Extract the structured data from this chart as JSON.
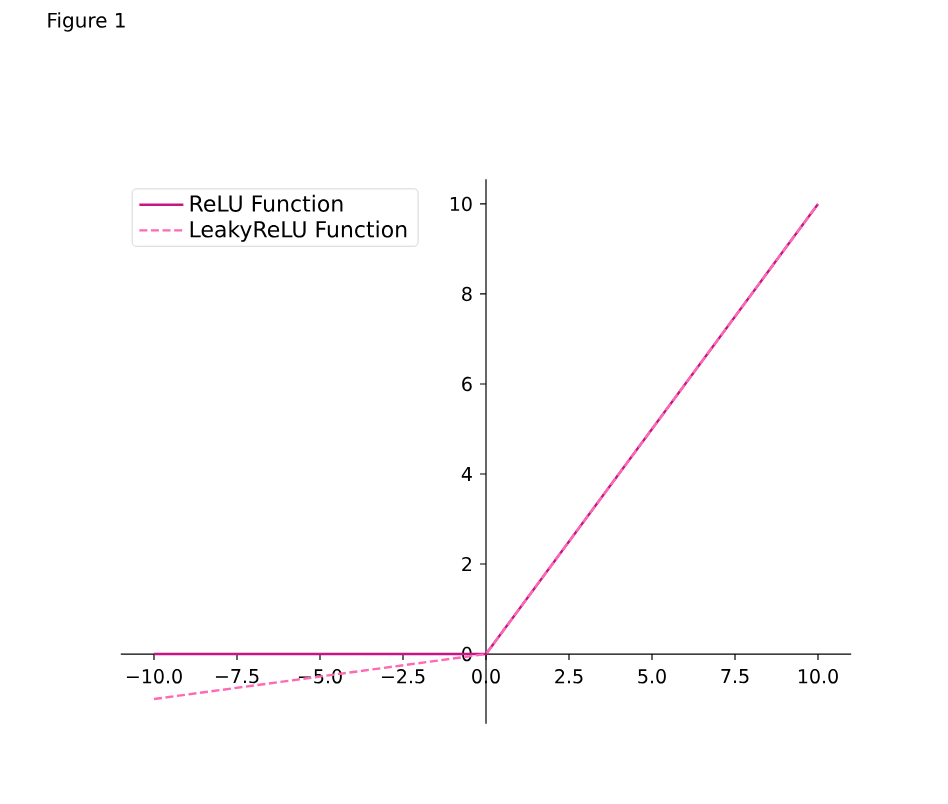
{
  "chart_data": {
    "type": "line",
    "annotations": [
      "Figure 1"
    ],
    "series": [
      {
        "name": "ReLU Function",
        "color": "#c71585",
        "line_style": "solid",
        "x": [
          -10,
          0,
          10
        ],
        "values": [
          0,
          0,
          10
        ]
      },
      {
        "name": "LeakyReLU Function",
        "color": "#ff69b4",
        "line_style": "dashed",
        "x": [
          -10,
          0,
          10
        ],
        "values": [
          -1,
          0,
          10
        ]
      }
    ],
    "xlim": [
      -11,
      11
    ],
    "ylim": [
      -1.55,
      10.55
    ],
    "xticks": [
      {
        "value": -10,
        "label": "−10.0"
      },
      {
        "value": -7.5,
        "label": "−7.5"
      },
      {
        "value": -5,
        "label": "−5.0"
      },
      {
        "value": -2.5,
        "label": "−2.5"
      },
      {
        "value": 0,
        "label": "0.0"
      },
      2.5,
      {
        "value": 5,
        "label": "5.0"
      },
      7.5,
      {
        "value": 10,
        "label": "10.0"
      }
    ],
    "yticks": [
      0,
      2,
      4,
      6,
      8,
      10
    ],
    "legend": "top left"
  }
}
